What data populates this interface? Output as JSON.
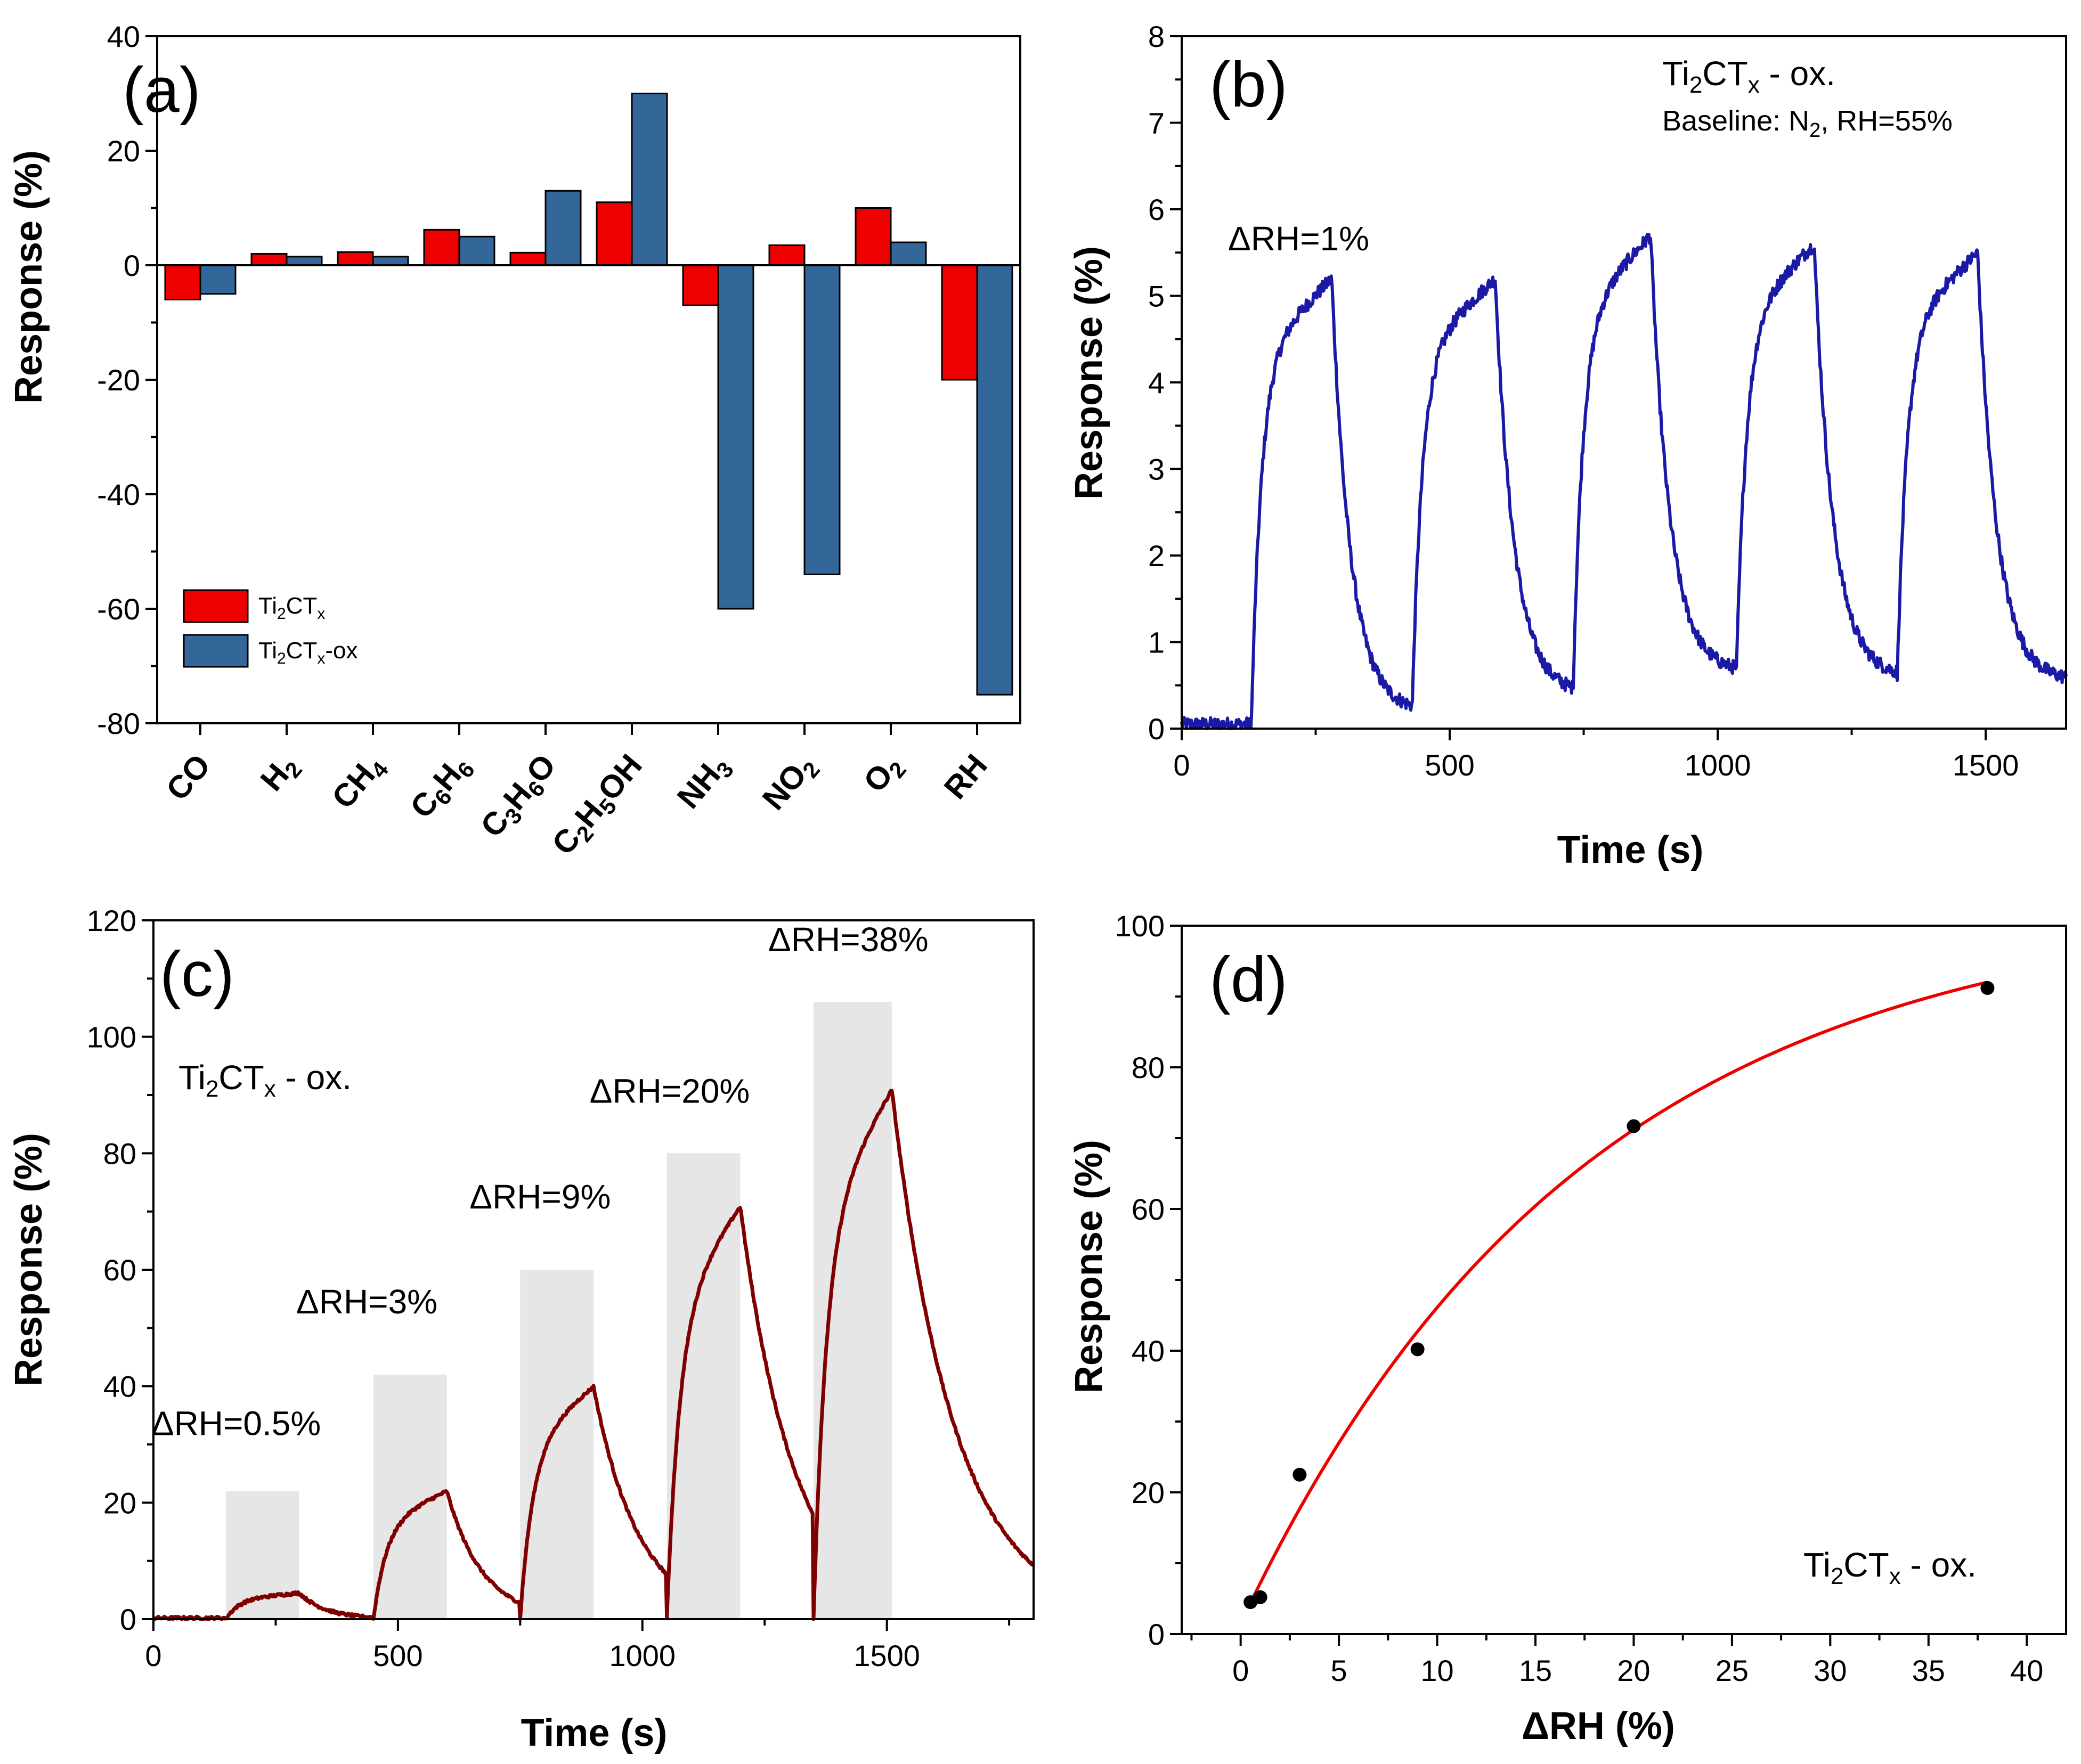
{
  "chart_data": [
    {
      "panel": "(a)",
      "type": "bar",
      "ylabel": "Response (%)",
      "ylim": [
        -80,
        40
      ],
      "yticks": [
        40,
        20,
        0,
        -20,
        -40,
        -60,
        -80
      ],
      "categories": [
        "CO",
        "H2",
        "CH4",
        "C6H6",
        "C3H6O",
        "C2H5OH",
        "NH3",
        "NO2",
        "O2",
        "RH"
      ],
      "series": [
        {
          "name": "Ti2CTx",
          "color": "#ee0000",
          "values": [
            -6,
            2,
            2.3,
            6.2,
            2.2,
            11,
            -7,
            3.5,
            10,
            -20
          ]
        },
        {
          "name": "Ti2CTx-ox",
          "color": "#336699",
          "values": [
            -5,
            1.5,
            1.5,
            5,
            13,
            30,
            -60,
            -54,
            4,
            -75
          ]
        }
      ]
    },
    {
      "panel": "(b)",
      "type": "line",
      "xlabel": "Time (s)",
      "ylabel": "Response (%)",
      "xlim": [
        0,
        1650
      ],
      "ylim": [
        0,
        8
      ],
      "xticks": [
        0,
        500,
        1000,
        1500
      ],
      "yticks": [
        0,
        1,
        2,
        3,
        4,
        5,
        6,
        7,
        8
      ],
      "color": "#1a1aa6",
      "pulses": [
        {
          "on": 130,
          "off": 280,
          "peak": 5.2,
          "base": 0.05
        },
        {
          "on": 430,
          "off": 585,
          "peak": 5.2,
          "base": 0.2
        },
        {
          "on": 730,
          "off": 875,
          "peak": 5.7,
          "base": 0.4
        },
        {
          "on": 1035,
          "off": 1180,
          "peak": 5.6,
          "base": 0.65
        },
        {
          "on": 1335,
          "off": 1485,
          "peak": 5.5,
          "base": 0.6
        }
      ],
      "annotations": {
        "material": "Ti2CTx - ox.",
        "baseline": "Baseline: N2, RH=55%",
        "delta": "ΔRH=1%"
      }
    },
    {
      "panel": "(c)",
      "type": "line",
      "xlabel": "Time (s)",
      "ylabel": "Response (%)",
      "xlim": [
        0,
        1800
      ],
      "ylim": [
        0,
        120
      ],
      "xticks": [
        0,
        500,
        1000,
        1500
      ],
      "yticks": [
        0,
        20,
        40,
        60,
        80,
        100,
        120
      ],
      "color": "#800000",
      "shade_color": "#e6e6e6",
      "pulses": [
        {
          "on": 148,
          "off": 298,
          "peak": 4.5,
          "shade_top": 22,
          "label": "ΔRH=0.5%"
        },
        {
          "on": 450,
          "off": 600,
          "peak": 22,
          "shade_top": 42,
          "label": "ΔRH=3%"
        },
        {
          "on": 750,
          "off": 900,
          "peak": 40,
          "shade_top": 60,
          "label": "ΔRH=9%"
        },
        {
          "on": 1050,
          "off": 1200,
          "peak": 71,
          "shade_top": 80,
          "label": "ΔRH=20%"
        },
        {
          "on": 1350,
          "off": 1510,
          "peak": 91,
          "shade_top": 106,
          "label": "ΔRH=38%"
        }
      ],
      "annotations": {
        "material": "Ti2CTx - ox."
      }
    },
    {
      "panel": "(d)",
      "type": "scatter",
      "xlabel": "ΔRH (%)",
      "ylabel": "Response (%)",
      "xlim": [
        -3,
        42
      ],
      "ylim": [
        0,
        100
      ],
      "xticks": [
        0,
        5,
        10,
        15,
        20,
        25,
        30,
        35,
        40
      ],
      "yticks": [
        0,
        20,
        40,
        60,
        80,
        100
      ],
      "points": {
        "x": [
          0.5,
          1,
          3,
          9,
          20,
          38
        ],
        "y": [
          4.5,
          5.2,
          22.5,
          40.2,
          71.7,
          91.2
        ]
      },
      "fit": {
        "type": "exponential",
        "a": 102,
        "b": 0.0575,
        "x_range": [
          0.5,
          38
        ],
        "color": "#ee0000"
      },
      "annotations": {
        "material": "Ti2CTx - ox."
      }
    }
  ]
}
